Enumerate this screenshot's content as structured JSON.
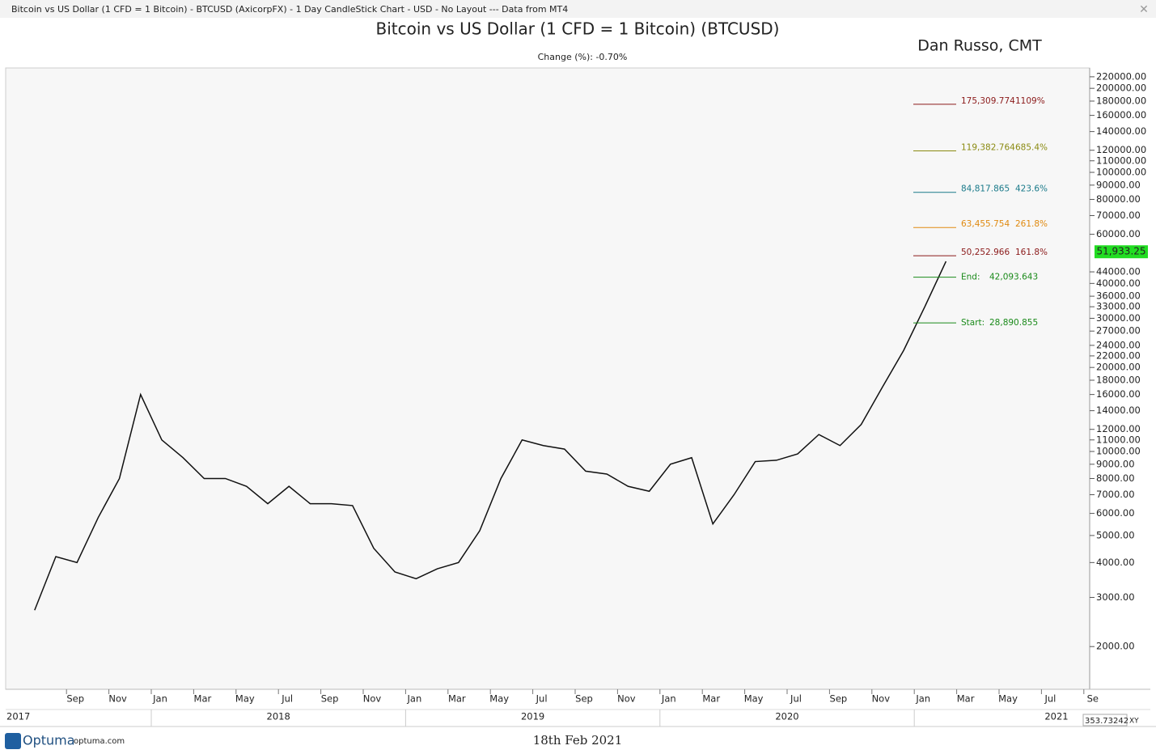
{
  "window_title": "Bitcoin vs US Dollar (1 CFD = 1 Bitcoin) - BTCUSD (AxicorpFX) - 1 Day CandleStick Chart - USD - No Layout --- Data from MT4",
  "footer": {
    "brand": "Optuma",
    "site": "optuma.com",
    "date": "18th Feb 2021",
    "cursor": "353.73242",
    "mode": "XY"
  },
  "chart_data": {
    "type": "line",
    "title": "Bitcoin vs US Dollar (1 CFD = 1 Bitcoin) (BTCUSD)",
    "subtitle": "Change (%): -0.70%",
    "author": "Dan Russo, CMT",
    "log_scale": true,
    "ylim": [
      1406,
      236600
    ],
    "yticks": [
      {
        "value": 220000,
        "label": "220000.00"
      },
      {
        "value": 200000,
        "label": "200000.00"
      },
      {
        "value": 180000,
        "label": "180000.00"
      },
      {
        "value": 160000,
        "label": "160000.00"
      },
      {
        "value": 140000,
        "label": "140000.00"
      },
      {
        "value": 120000,
        "label": "120000.00"
      },
      {
        "value": 110000,
        "label": "110000.00"
      },
      {
        "value": 100000,
        "label": "100000.00"
      },
      {
        "value": 90000,
        "label": "90000.00"
      },
      {
        "value": 80000,
        "label": "80000.00"
      },
      {
        "value": 70000,
        "label": "70000.00"
      },
      {
        "value": 60000,
        "label": "60000.00"
      },
      {
        "value": 44000,
        "label": "44000.00"
      },
      {
        "value": 40000,
        "label": "40000.00"
      },
      {
        "value": 36000,
        "label": "36000.00"
      },
      {
        "value": 33000,
        "label": "33000.00"
      },
      {
        "value": 30000,
        "label": "30000.00"
      },
      {
        "value": 27000,
        "label": "27000.00"
      },
      {
        "value": 24000,
        "label": "24000.00"
      },
      {
        "value": 22000,
        "label": "22000.00"
      },
      {
        "value": 20000,
        "label": "20000.00"
      },
      {
        "value": 18000,
        "label": "18000.00"
      },
      {
        "value": 16000,
        "label": "16000.00"
      },
      {
        "value": 14000,
        "label": "14000.00"
      },
      {
        "value": 12000,
        "label": "12000.00"
      },
      {
        "value": 11000,
        "label": "11000.00"
      },
      {
        "value": 10000,
        "label": "10000.00"
      },
      {
        "value": 9000,
        "label": "9000.00"
      },
      {
        "value": 8000,
        "label": "8000.00"
      },
      {
        "value": 7000,
        "label": "7000.00"
      },
      {
        "value": 6000,
        "label": "6000.00"
      },
      {
        "value": 5000,
        "label": "5000.00"
      },
      {
        "value": 4000,
        "label": "4000.00"
      },
      {
        "value": 3000,
        "label": "3000.00"
      },
      {
        "value": 2000,
        "label": "2000.00"
      }
    ],
    "xticks": [
      {
        "value": "2017-09",
        "label": "Sep"
      },
      {
        "value": "2017-11",
        "label": "Nov"
      },
      {
        "value": "2018-01",
        "label": "Jan"
      },
      {
        "value": "2018-03",
        "label": "Mar"
      },
      {
        "value": "2018-05",
        "label": "May"
      },
      {
        "value": "2018-07",
        "label": "Jul"
      },
      {
        "value": "2018-09",
        "label": "Sep"
      },
      {
        "value": "2018-11",
        "label": "Nov"
      },
      {
        "value": "2019-01",
        "label": "Jan"
      },
      {
        "value": "2019-03",
        "label": "Mar"
      },
      {
        "value": "2019-05",
        "label": "May"
      },
      {
        "value": "2019-07",
        "label": "Jul"
      },
      {
        "value": "2019-09",
        "label": "Sep"
      },
      {
        "value": "2019-11",
        "label": "Nov"
      },
      {
        "value": "2020-01",
        "label": "Jan"
      },
      {
        "value": "2020-03",
        "label": "Mar"
      },
      {
        "value": "2020-05",
        "label": "May"
      },
      {
        "value": "2020-07",
        "label": "Jul"
      },
      {
        "value": "2020-09",
        "label": "Sep"
      },
      {
        "value": "2020-11",
        "label": "Nov"
      },
      {
        "value": "2021-01",
        "label": "Jan"
      },
      {
        "value": "2021-03",
        "label": "Mar"
      },
      {
        "value": "2021-05",
        "label": "May"
      },
      {
        "value": "2021-07",
        "label": "Jul"
      },
      {
        "value": "2021-09",
        "label": "Se"
      }
    ],
    "years": [
      "2017",
      "2018",
      "2019",
      "2020",
      "2021"
    ],
    "x": [
      "2017-07",
      "2017-08",
      "2017-09",
      "2017-10",
      "2017-11",
      "2017-12",
      "2018-01",
      "2018-02",
      "2018-03",
      "2018-04",
      "2018-05",
      "2018-06",
      "2018-07",
      "2018-08",
      "2018-09",
      "2018-10",
      "2018-11",
      "2018-12",
      "2019-01",
      "2019-02",
      "2019-03",
      "2019-04",
      "2019-05",
      "2019-06",
      "2019-07",
      "2019-08",
      "2019-09",
      "2019-10",
      "2019-11",
      "2019-12",
      "2020-01",
      "2020-02",
      "2020-03",
      "2020-04",
      "2020-05",
      "2020-06",
      "2020-07",
      "2020-08",
      "2020-09",
      "2020-10",
      "2020-11",
      "2020-12",
      "2021-01",
      "2021-02"
    ],
    "series": [
      {
        "name": "BTCUSD",
        "color": "#111111",
        "values": [
          2700,
          4200,
          4000,
          5800,
          8000,
          16000,
          11000,
          9500,
          8000,
          8000,
          7500,
          6500,
          7500,
          6500,
          6500,
          6400,
          4500,
          3700,
          3500,
          3800,
          4000,
          5200,
          8000,
          11000,
          10500,
          10200,
          8500,
          8300,
          7500,
          7200,
          9000,
          9500,
          5500,
          7000,
          9200,
          9300,
          9800,
          11500,
          10500,
          12500,
          17000,
          23000,
          33000,
          48000
        ]
      }
    ],
    "last_price": {
      "value": 51933.25,
      "label": "51,933.25",
      "color": "#22dd22"
    },
    "levels": [
      {
        "value": 175309.774,
        "label": "175,309.774",
        "ratio": 1109,
        "ratio_label": "1109%",
        "color": "#8b1a1a"
      },
      {
        "value": 119382.764,
        "label": "119,382.764",
        "ratio": 685.4,
        "ratio_label": "685.4%",
        "color": "#8a8a10"
      },
      {
        "value": 84817.865,
        "label": "84,817.865",
        "ratio": 423.6,
        "ratio_label": "423.6%",
        "color": "#1a7a8a"
      },
      {
        "value": 63455.754,
        "label": "63,455.754",
        "ratio": 261.8,
        "ratio_label": "261.8%",
        "color": "#e08a10"
      },
      {
        "value": 50252.966,
        "label": "50,252.966",
        "ratio": 161.8,
        "ratio_label": "161.8%",
        "color": "#8b1a1a"
      },
      {
        "value": 42093.643,
        "label": "42,093.643",
        "name": "End:",
        "color": "#1a8a1a"
      },
      {
        "value": 28890.855,
        "label": "28,890.855",
        "name": "Start:",
        "color": "#1a8a1a"
      }
    ]
  }
}
